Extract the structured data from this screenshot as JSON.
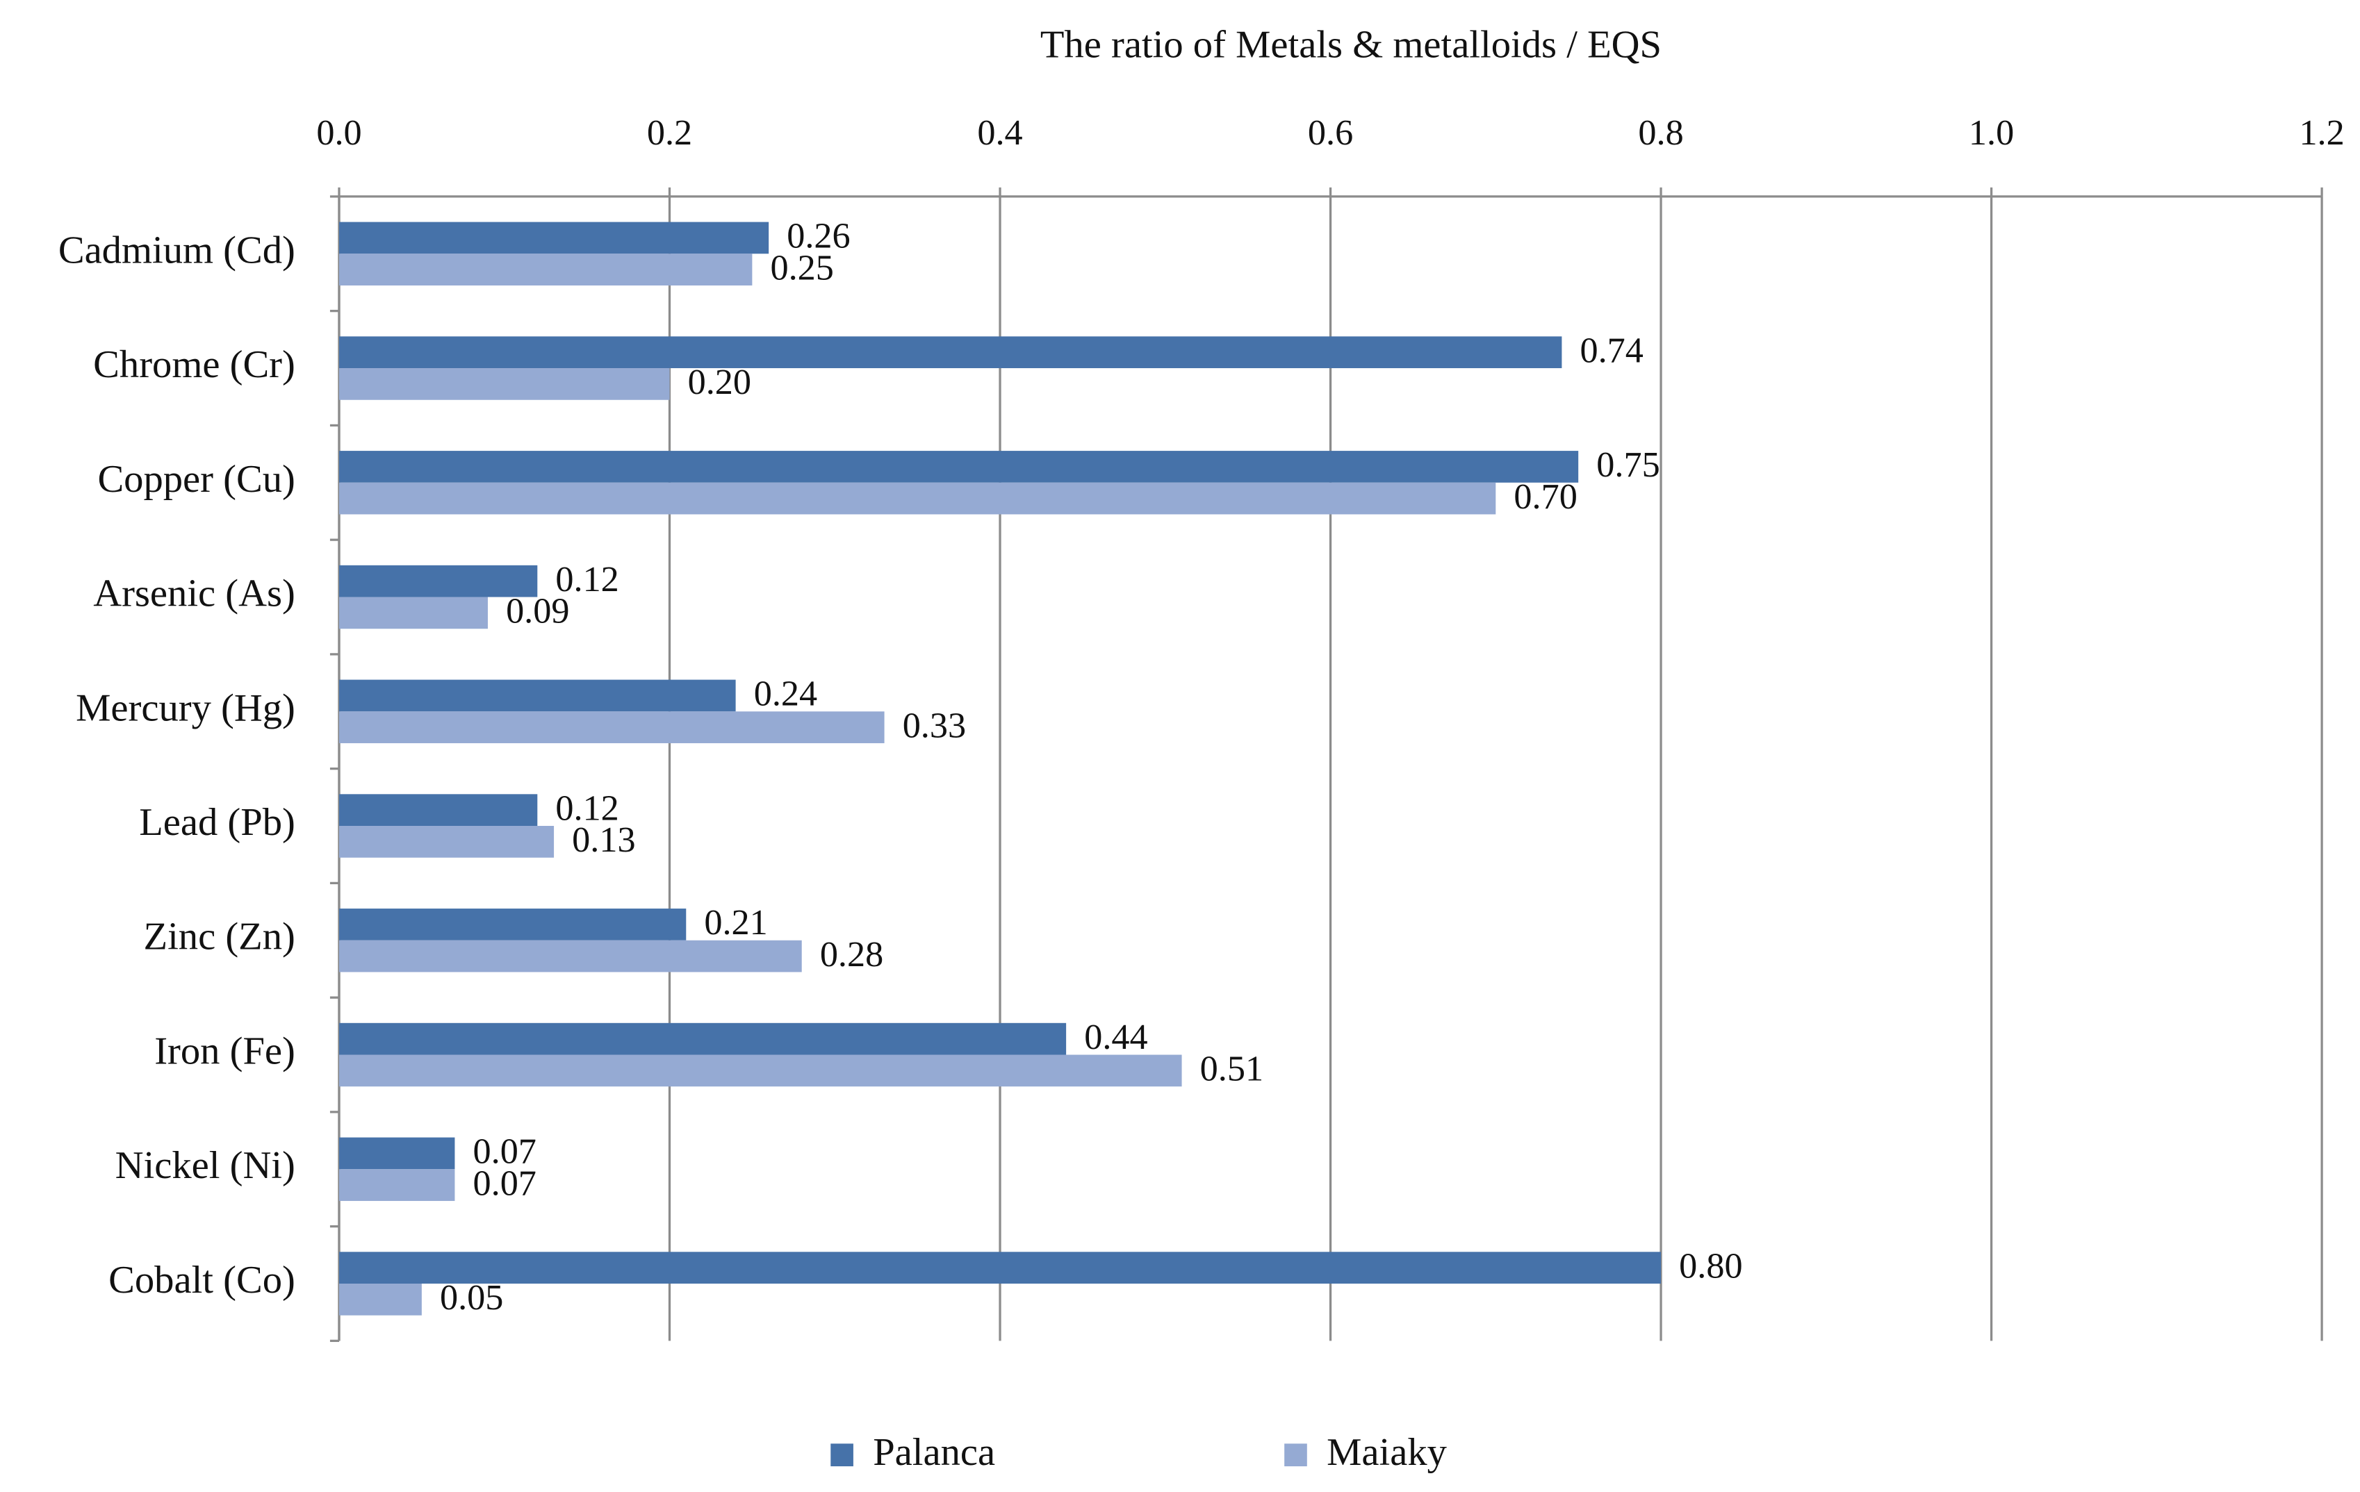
{
  "chart_data": {
    "type": "hbar",
    "x_axis_label": "The  ratio  of   Metals & metalloids / EQS",
    "categories": [
      "Cadmium (Cd)",
      "Chrome (Cr)",
      "Copper (Cu)",
      "Arsenic (As)",
      "Mercury (Hg)",
      "Lead (Pb)",
      "Zinc (Zn)",
      "Iron (Fe)",
      "Nickel (Ni)",
      "Cobalt (Co)"
    ],
    "series": [
      {
        "name": "Palanca",
        "color": "#4672a9",
        "values": [
          0.26,
          0.74,
          0.75,
          0.12,
          0.24,
          0.12,
          0.21,
          0.44,
          0.07,
          0.8
        ],
        "value_labels": [
          "0.26",
          "0.74",
          "0.75",
          "0.12",
          "0.24",
          "0.12",
          "0.21",
          "0.44",
          "0.07",
          "0.80"
        ]
      },
      {
        "name": "Maiaky",
        "color": "#95aad3",
        "values": [
          0.25,
          0.2,
          0.7,
          0.09,
          0.33,
          0.13,
          0.28,
          0.51,
          0.07,
          0.05
        ],
        "value_labels": [
          "0.25",
          "0.20",
          "0.70",
          "0.09",
          "0.33",
          "0.13",
          "0.28",
          "0.51",
          "0.07",
          "0.05"
        ]
      }
    ],
    "xlim": [
      0,
      1.2
    ],
    "xticks": [
      {
        "value": 0,
        "label": "0.0"
      },
      0.2,
      0.4,
      0.6,
      0.8,
      {
        "value": 1,
        "label": "1.0"
      },
      1.2
    ],
    "grid": true,
    "legend": "bottom"
  }
}
